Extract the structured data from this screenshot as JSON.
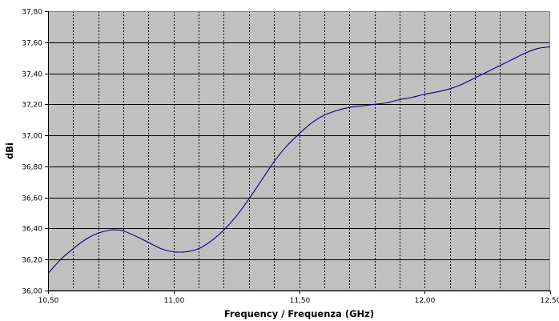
{
  "chart_data": {
    "type": "line",
    "title": "",
    "xlabel": "Frequency / Frequenza (GHz)",
    "ylabel": "dBi",
    "xlim": [
      10.5,
      12.5
    ],
    "ylim": [
      36.0,
      37.8
    ],
    "x_ticks": [
      10.5,
      11.0,
      11.5,
      12.0,
      12.5
    ],
    "x_tick_labels": [
      "10,50",
      "11,00",
      "11,50",
      "12,00",
      "12,50"
    ],
    "x_minor_grid_step": 0.1,
    "y_ticks": [
      36.0,
      36.2,
      36.4,
      36.6,
      36.8,
      37.0,
      37.2,
      37.4,
      37.6,
      37.8
    ],
    "y_tick_labels": [
      "36,00",
      "36,20",
      "36,40",
      "36,60",
      "36,80",
      "37,00",
      "37,20",
      "37,40",
      "37,60",
      "37,80"
    ],
    "grid": true,
    "plot_background": "#c0c0c0",
    "series": [
      {
        "color": "#000080",
        "x": [
          10.5,
          10.55,
          10.6,
          10.65,
          10.7,
          10.75,
          10.78,
          10.8,
          10.85,
          10.9,
          10.95,
          11.0,
          11.05,
          11.1,
          11.15,
          11.2,
          11.25,
          11.3,
          11.35,
          11.4,
          11.45,
          11.5,
          11.55,
          11.6,
          11.65,
          11.7,
          11.75,
          11.8,
          11.85,
          11.9,
          11.95,
          12.0,
          12.05,
          12.1,
          12.15,
          12.2,
          12.25,
          12.3,
          12.35,
          12.4,
          12.45,
          12.5
        ],
        "y": [
          36.11,
          36.2,
          36.27,
          36.33,
          36.37,
          36.39,
          36.39,
          36.385,
          36.35,
          36.31,
          36.27,
          36.25,
          36.25,
          36.27,
          36.32,
          36.39,
          36.48,
          36.59,
          36.71,
          36.83,
          36.93,
          37.01,
          37.08,
          37.13,
          37.16,
          37.18,
          37.19,
          37.2,
          37.21,
          37.23,
          37.245,
          37.265,
          37.28,
          37.3,
          37.33,
          37.37,
          37.41,
          37.45,
          37.49,
          37.53,
          37.56,
          37.57
        ]
      }
    ]
  }
}
